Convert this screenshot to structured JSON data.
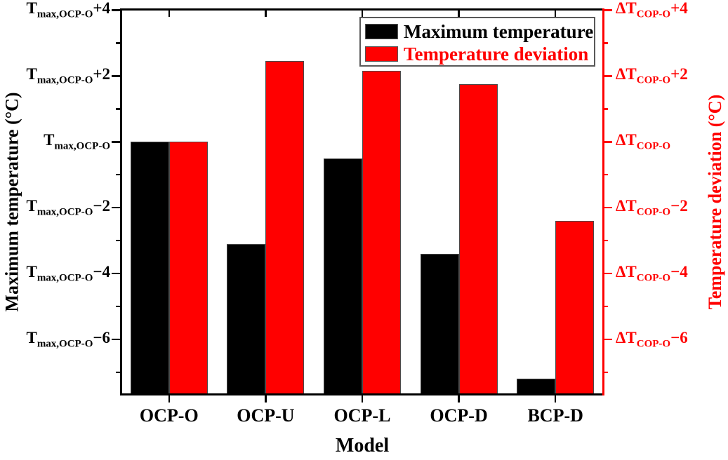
{
  "chart_data": {
    "type": "bar",
    "title": "",
    "xlabel": "Model",
    "categories": [
      "OCP-O",
      "OCP-U",
      "OCP-L",
      "OCP-D",
      "BCP-D"
    ],
    "series": [
      {
        "name": "Maximum temperature",
        "axis": "left",
        "color": "#000000",
        "values": [
          0,
          -3.1,
          -0.5,
          -3.4,
          -7.2
        ]
      },
      {
        "name": "Temperature deviation",
        "axis": "right",
        "color": "#ff0000",
        "values": [
          0,
          2.45,
          2.15,
          1.75,
          -2.4
        ]
      }
    ],
    "ylim": [
      -7.66,
      4.03
    ],
    "bar_baseline": "axis_min",
    "grid": false,
    "legend_position": "top-right-inside",
    "left_axis": {
      "title": "Maximum temperature (°C)",
      "color": "#000000",
      "tick_prefix": "T",
      "tick_subscript": "max,OCP-O",
      "major_ticks": [
        {
          "offset": 4,
          "suffix": "+4"
        },
        {
          "offset": 2,
          "suffix": "+2"
        },
        {
          "offset": 0,
          "suffix": ""
        },
        {
          "offset": -2,
          "suffix": "−2"
        },
        {
          "offset": -4,
          "suffix": "−4"
        },
        {
          "offset": -6,
          "suffix": "−6"
        }
      ],
      "minor_tick_offsets": [
        3,
        1,
        -1,
        -3,
        -5,
        -7
      ]
    },
    "right_axis": {
      "title": "Temperature deviation (°C)",
      "color": "#ff0000",
      "tick_prefix": "ΔT",
      "tick_subscript": "COP-O",
      "major_ticks": [
        {
          "offset": 4,
          "suffix": "+4"
        },
        {
          "offset": 2,
          "suffix": "+2"
        },
        {
          "offset": 0,
          "suffix": ""
        },
        {
          "offset": -2,
          "suffix": "−2"
        },
        {
          "offset": -4,
          "suffix": "−4"
        },
        {
          "offset": -6,
          "suffix": "−6"
        }
      ],
      "minor_tick_offsets": [
        3,
        1,
        -1,
        -3,
        -5,
        -7
      ]
    }
  },
  "legend": {
    "items": [
      {
        "label": "Maximum temperature",
        "color": "#000000"
      },
      {
        "label": "Temperature deviation",
        "color": "#ff0000"
      }
    ]
  }
}
